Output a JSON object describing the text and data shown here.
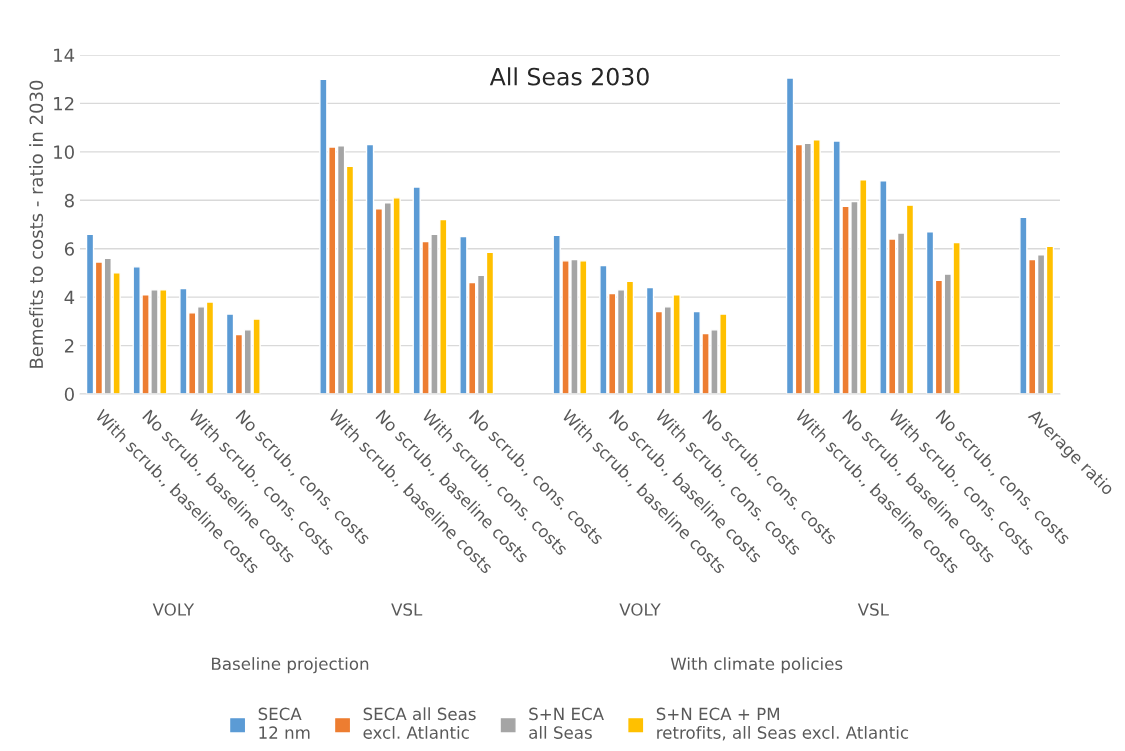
{
  "chart_data": {
    "type": "bar",
    "title": "All Seas 2030",
    "ylabel": "Bemefits to costs - ratio in 2030",
    "categories": [
      "With scrub., baseline costs",
      "No scrub., baseline costs",
      "With scrub., cons. costs",
      "No scrub., cons. costs",
      null,
      "With scrub., baseline costs",
      "No scrub., baseline costs",
      "With scrub., cons. costs",
      "No scrub., cons. costs",
      null,
      "With scrub., baseline costs",
      "No scrub., baseline costs",
      "With scrub., cons. costs",
      "No scrub., cons. costs",
      null,
      "With scrub., baseline costs",
      "No scrub., baseline costs",
      "With scrub., cons. costs",
      "No scrub., cons. costs",
      null,
      "Average ratio"
    ],
    "series": [
      {
        "name": "SECA\n12 nm",
        "color": "#5b9bd5",
        "values": [
          6.6,
          5.25,
          4.35,
          3.3,
          null,
          13.0,
          10.3,
          8.55,
          6.5,
          null,
          6.55,
          5.3,
          4.4,
          3.4,
          null,
          13.05,
          10.45,
          8.8,
          6.7,
          null,
          7.3
        ]
      },
      {
        "name": "SECA all Seas\nexcl. Atlantic",
        "color": "#ed7d31",
        "values": [
          5.45,
          4.1,
          3.35,
          2.45,
          null,
          10.2,
          7.65,
          6.3,
          4.6,
          null,
          5.5,
          4.15,
          3.4,
          2.5,
          null,
          10.3,
          7.75,
          6.4,
          4.7,
          null,
          5.55
        ]
      },
      {
        "name": "S+N ECA\nall Seas",
        "color": "#a5a5a5",
        "values": [
          5.6,
          4.3,
          3.6,
          2.65,
          null,
          10.25,
          7.9,
          6.6,
          4.9,
          null,
          5.55,
          4.3,
          3.6,
          2.65,
          null,
          10.35,
          7.95,
          6.65,
          4.95,
          null,
          5.75
        ]
      },
      {
        "name": "S+N ECA + PM\nretrofits, all Seas excl. Atlantic",
        "color": "#ffc000",
        "values": [
          5.0,
          4.3,
          3.8,
          3.1,
          null,
          9.4,
          8.1,
          7.2,
          5.85,
          null,
          5.5,
          4.65,
          4.1,
          3.3,
          null,
          10.5,
          8.85,
          7.8,
          6.25,
          null,
          6.1
        ]
      }
    ],
    "annotations": [
      "VOLY",
      "VSL",
      "VOLY",
      "VSL",
      "Baseline projection",
      "With climate policies"
    ],
    "ylim": [
      0,
      14
    ],
    "yticks": [
      0,
      2,
      4,
      6,
      8,
      10,
      12,
      14
    ],
    "grid": "y",
    "legend": "bottom"
  }
}
